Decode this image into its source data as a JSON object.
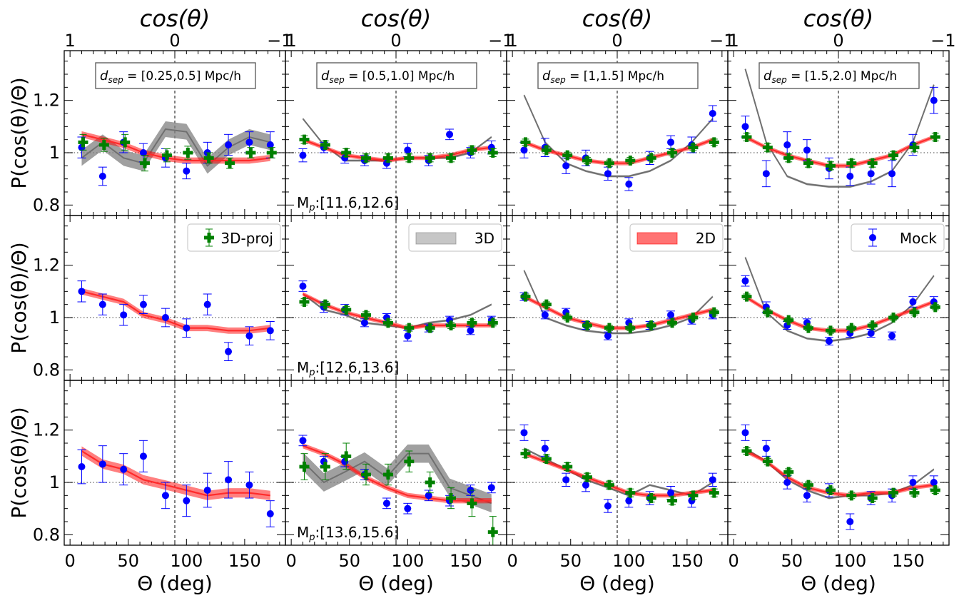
{
  "chart_data": {
    "type": "scatter",
    "layout": "3 rows x 4 columns",
    "xlabel": "Θ (deg)",
    "ylabel": "P(cos(θ)/Θ)",
    "top_xlabel": "cos(θ)",
    "xlim": [
      -5,
      185
    ],
    "ylim": [
      0.76,
      1.39
    ],
    "xticks": [
      0,
      50,
      100,
      150
    ],
    "yticks": [
      0.8,
      1.0,
      1.2
    ],
    "top_ticks": [
      {
        "pos": 0,
        "label": "1"
      },
      {
        "pos": 90,
        "label": "0"
      },
      {
        "pos": 180,
        "label": "−1"
      }
    ],
    "x": [
      10,
      28,
      46,
      63,
      82,
      100,
      118,
      136,
      154,
      172
    ],
    "reference_line": 1.0,
    "vertical_line_theta": 90,
    "legend": [
      {
        "name": "3D-proj",
        "color": "#008000",
        "row": 1,
        "col": 0
      },
      {
        "name": "3D",
        "color": "#808080",
        "row": 1,
        "col": 1
      },
      {
        "name": "2D",
        "color": "#ff0000",
        "row": 1,
        "col": 2
      },
      {
        "name": "Mock",
        "color": "#0000ff",
        "row": 1,
        "col": 3
      }
    ],
    "columns": [
      {
        "dsep_label": "[0.25,0.5] Mpc/h"
      },
      {
        "dsep_label": "[0.5,1.0] Mpc/h"
      },
      {
        "dsep_label": "[1,1.5] Mpc/h"
      },
      {
        "dsep_label": "[1.5,2.0] Mpc/h"
      }
    ],
    "rows": [
      {
        "mass_label": "M",
        "mass_sub": "p",
        "mass_range": ":[11.6,12.6]"
      },
      {
        "mass_label": "M",
        "mass_sub": "p",
        "mass_range": ":[12.6,13.6]"
      },
      {
        "mass_label": "M",
        "mass_sub": "p",
        "mass_range": ":[13.6,15.6]"
      }
    ],
    "panels": [
      {
        "row": 0,
        "col": 0,
        "mock": [
          1.02,
          0.91,
          1.04,
          1.0,
          0.98,
          0.93,
          1.0,
          1.03,
          1.04,
          1.03
        ],
        "mock_err": [
          0.04,
          0.035,
          0.04,
          0.035,
          0.035,
          0.03,
          0.04,
          0.04,
          0.04,
          0.05
        ],
        "proj": [
          1.04,
          1.03,
          1.04,
          0.96,
          0.99,
          1.0,
          0.98,
          0.96,
          1.0,
          1.0
        ],
        "proj_err": [
          0.03,
          0.025,
          0.03,
          0.03,
          0.025,
          0.025,
          0.02,
          0.02,
          0.02,
          0.02
        ],
        "twoD": [
          1.07,
          1.05,
          1.03,
          1.0,
          0.98,
          0.97,
          0.97,
          0.97,
          0.97,
          0.98
        ],
        "twoD_w": 0.012,
        "threeD": [
          0.98,
          1.04,
          0.98,
          0.96,
          1.09,
          1.08,
          0.95,
          1.02,
          1.06,
          1.04
        ],
        "threeD_w": 0.03
      },
      {
        "row": 0,
        "col": 1,
        "mock": [
          0.99,
          1.02,
          0.98,
          0.97,
          0.96,
          1.01,
          0.97,
          1.07,
          1.0,
          1.02
        ],
        "mock_err": [
          0.025,
          0.02,
          0.02,
          0.02,
          0.02,
          0.025,
          0.02,
          0.02,
          0.02,
          0.025
        ],
        "proj": [
          1.05,
          1.03,
          1.0,
          0.98,
          0.98,
          0.98,
          0.98,
          0.98,
          1.01,
          1.0
        ],
        "proj_err": [
          0.015,
          0.015,
          0.015,
          0.015,
          0.015,
          0.015,
          0.015,
          0.015,
          0.015,
          0.015
        ],
        "twoD": [
          1.05,
          1.02,
          0.99,
          0.98,
          0.97,
          0.98,
          0.98,
          0.99,
          1.01,
          1.02
        ],
        "twoD_w": 0.008,
        "threeD": [
          1.13,
          1.03,
          0.97,
          0.97,
          0.97,
          0.98,
          0.98,
          0.98,
          1.0,
          1.06
        ],
        "threeD_w": 0.004
      },
      {
        "row": 0,
        "col": 2,
        "mock": [
          1.01,
          1.02,
          0.95,
          0.98,
          0.92,
          0.88,
          0.98,
          1.04,
          1.03,
          1.15
        ],
        "mock_err": [
          0.03,
          0.035,
          0.03,
          0.03,
          0.025,
          0.025,
          0.025,
          0.025,
          0.03,
          0.03
        ],
        "proj": [
          1.04,
          1.01,
          0.99,
          0.97,
          0.96,
          0.97,
          0.98,
          1.0,
          1.02,
          1.04
        ],
        "proj_err": [
          0.012,
          0.012,
          0.012,
          0.012,
          0.012,
          0.012,
          0.012,
          0.012,
          0.012,
          0.012
        ],
        "twoD": [
          1.04,
          1.01,
          0.99,
          0.97,
          0.96,
          0.96,
          0.98,
          1.0,
          1.02,
          1.05
        ],
        "twoD_w": 0.008,
        "threeD": [
          1.22,
          1.04,
          0.96,
          0.93,
          0.91,
          0.91,
          0.93,
          0.97,
          1.04,
          1.13
        ],
        "threeD_w": 0.004
      },
      {
        "row": 0,
        "col": 3,
        "mock": [
          1.1,
          0.92,
          1.03,
          1.01,
          0.94,
          0.91,
          0.92,
          0.92,
          1.03,
          1.2
        ],
        "mock_err": [
          0.04,
          0.05,
          0.05,
          0.04,
          0.04,
          0.035,
          0.04,
          0.05,
          0.04,
          0.05
        ],
        "proj": [
          1.06,
          1.02,
          0.98,
          0.96,
          0.95,
          0.96,
          0.96,
          0.99,
          1.02,
          1.06
        ],
        "proj_err": [
          0.015,
          0.015,
          0.015,
          0.015,
          0.015,
          0.015,
          0.015,
          0.015,
          0.015,
          0.015
        ],
        "twoD": [
          1.06,
          1.02,
          0.99,
          0.97,
          0.95,
          0.95,
          0.97,
          0.99,
          1.03,
          1.06
        ],
        "twoD_w": 0.008,
        "threeD": [
          1.32,
          1.04,
          0.91,
          0.88,
          0.87,
          0.87,
          0.89,
          0.93,
          1.04,
          1.26
        ],
        "threeD_w": 0.004
      },
      {
        "row": 1,
        "col": 0,
        "mock": [
          1.1,
          1.05,
          1.01,
          1.05,
          1.0,
          0.96,
          1.05,
          0.87,
          0.93,
          0.95
        ],
        "mock_err": [
          0.04,
          0.04,
          0.04,
          0.035,
          0.035,
          0.035,
          0.04,
          0.035,
          0.035,
          0.035
        ],
        "proj": null,
        "proj_err": null,
        "twoD": [
          1.1,
          1.08,
          1.06,
          1.01,
          0.99,
          0.96,
          0.96,
          0.95,
          0.95,
          0.96
        ],
        "twoD_w": 0.012,
        "threeD": null,
        "threeD_w": 0
      },
      {
        "row": 1,
        "col": 1,
        "mock": [
          1.12,
          1.04,
          1.03,
          0.98,
          1.0,
          0.93,
          0.96,
          0.99,
          0.95,
          0.99
        ],
        "mock_err": [
          0.02,
          0.02,
          0.02,
          0.015,
          0.015,
          0.02,
          0.015,
          0.015,
          0.015,
          0.015
        ],
        "proj": [
          1.06,
          1.05,
          1.03,
          1.01,
          0.98,
          0.96,
          0.96,
          0.97,
          0.98,
          0.98
        ],
        "proj_err": [
          0.012,
          0.012,
          0.012,
          0.012,
          0.012,
          0.012,
          0.012,
          0.012,
          0.012,
          0.012
        ],
        "twoD": [
          1.09,
          1.05,
          1.02,
          1.0,
          0.98,
          0.96,
          0.97,
          0.97,
          0.97,
          0.97
        ],
        "twoD_w": 0.008,
        "threeD": [
          1.09,
          1.03,
          1.01,
          0.98,
          0.97,
          0.96,
          0.98,
          0.99,
          1.01,
          1.05
        ],
        "threeD_w": 0.004
      },
      {
        "row": 1,
        "col": 2,
        "mock": [
          1.08,
          1.01,
          1.02,
          0.97,
          0.93,
          0.98,
          0.97,
          1.01,
          0.99,
          1.01
        ],
        "mock_err": [
          0.015,
          0.015,
          0.015,
          0.015,
          0.015,
          0.015,
          0.015,
          0.015,
          0.015,
          0.015
        ],
        "proj": [
          1.08,
          1.05,
          1.0,
          0.97,
          0.96,
          0.96,
          0.97,
          0.98,
          1.0,
          1.02
        ],
        "proj_err": [
          0.01,
          0.01,
          0.01,
          0.01,
          0.01,
          0.01,
          0.01,
          0.01,
          0.01,
          0.01
        ],
        "twoD": [
          1.08,
          1.04,
          1.0,
          0.98,
          0.96,
          0.96,
          0.97,
          0.99,
          1.01,
          1.03
        ],
        "twoD_w": 0.008,
        "threeD": [
          1.18,
          1.0,
          0.97,
          0.95,
          0.94,
          0.94,
          0.95,
          0.97,
          1.0,
          1.08
        ],
        "threeD_w": 0.004
      },
      {
        "row": 1,
        "col": 3,
        "mock": [
          1.14,
          1.04,
          0.97,
          0.98,
          0.91,
          0.94,
          0.94,
          0.93,
          1.06,
          1.06
        ],
        "mock_err": [
          0.02,
          0.02,
          0.015,
          0.015,
          0.015,
          0.015,
          0.015,
          0.015,
          0.02,
          0.02
        ],
        "proj": [
          1.08,
          1.02,
          0.99,
          0.96,
          0.95,
          0.96,
          0.97,
          1.0,
          1.02,
          1.04
        ],
        "proj_err": [
          0.01,
          0.01,
          0.01,
          0.01,
          0.01,
          0.01,
          0.01,
          0.01,
          0.01,
          0.01
        ],
        "twoD": [
          1.08,
          1.03,
          0.99,
          0.96,
          0.95,
          0.95,
          0.97,
          1.0,
          1.03,
          1.06
        ],
        "twoD_w": 0.008,
        "threeD": [
          1.23,
          1.02,
          0.95,
          0.92,
          0.91,
          0.92,
          0.94,
          0.98,
          1.05,
          1.16
        ],
        "threeD_w": 0.004
      },
      {
        "row": 2,
        "col": 0,
        "mock": [
          1.06,
          1.07,
          1.05,
          1.1,
          0.95,
          0.93,
          0.97,
          1.01,
          0.99,
          0.88
        ],
        "mock_err": [
          0.065,
          0.07,
          0.06,
          0.06,
          0.05,
          0.06,
          0.065,
          0.07,
          0.05,
          0.05
        ],
        "proj": null,
        "proj_err": null,
        "twoD": [
          1.12,
          1.07,
          1.05,
          1.01,
          0.99,
          0.97,
          0.95,
          0.96,
          0.96,
          0.95
        ],
        "twoD_w": 0.018,
        "threeD": null,
        "threeD_w": 0
      },
      {
        "row": 2,
        "col": 1,
        "mock": [
          1.16,
          1.08,
          1.08,
          1.03,
          0.92,
          0.9,
          0.95,
          0.93,
          0.97,
          0.98
        ],
        "mock_err": [
          0.02,
          0.02,
          0.02,
          0.02,
          0.02,
          0.02,
          0.02,
          0.02,
          0.02,
          0.02
        ],
        "proj": [
          1.06,
          1.06,
          1.1,
          1.03,
          1.03,
          1.08,
          1.0,
          0.94,
          0.92,
          0.81
        ],
        "proj_err": [
          0.05,
          0.05,
          0.05,
          0.04,
          0.04,
          0.04,
          0.04,
          0.04,
          0.05,
          0.06
        ],
        "twoD": [
          1.14,
          1.11,
          1.07,
          1.02,
          0.98,
          0.95,
          0.94,
          0.93,
          0.93,
          0.93
        ],
        "twoD_w": 0.01,
        "threeD": [
          1.08,
          1.0,
          1.04,
          1.08,
          1.02,
          1.11,
          1.11,
          0.98,
          0.95,
          0.92
        ],
        "threeD_w": 0.035
      },
      {
        "row": 2,
        "col": 2,
        "mock": [
          1.19,
          1.13,
          1.01,
          0.99,
          0.91,
          0.93,
          0.94,
          0.96,
          0.93,
          1.01
        ],
        "mock_err": [
          0.03,
          0.03,
          0.025,
          0.025,
          0.025,
          0.025,
          0.025,
          0.025,
          0.025,
          0.025
        ],
        "proj": [
          1.11,
          1.09,
          1.06,
          1.02,
          0.99,
          0.96,
          0.94,
          0.93,
          0.95,
          0.96
        ],
        "proj_err": [
          0.015,
          0.015,
          0.015,
          0.015,
          0.015,
          0.015,
          0.015,
          0.015,
          0.015,
          0.015
        ],
        "twoD": [
          1.11,
          1.08,
          1.05,
          1.02,
          0.99,
          0.96,
          0.95,
          0.95,
          0.96,
          0.97
        ],
        "twoD_w": 0.008,
        "threeD": [
          1.13,
          1.09,
          1.05,
          1.01,
          0.98,
          0.95,
          0.99,
          0.97,
          0.95,
          1.0
        ],
        "threeD_w": 0.004
      },
      {
        "row": 2,
        "col": 3,
        "mock": [
          1.19,
          1.13,
          1.0,
          0.95,
          0.97,
          0.85,
          0.94,
          0.95,
          1.0,
          1.0
        ],
        "mock_err": [
          0.03,
          0.03,
          0.025,
          0.025,
          0.025,
          0.03,
          0.025,
          0.025,
          0.025,
          0.025
        ],
        "proj": [
          1.12,
          1.08,
          1.04,
          0.99,
          0.97,
          0.95,
          0.94,
          0.96,
          0.96,
          0.97
        ],
        "proj_err": [
          0.012,
          0.012,
          0.012,
          0.012,
          0.012,
          0.012,
          0.012,
          0.012,
          0.012,
          0.012
        ],
        "twoD": [
          1.12,
          1.08,
          1.02,
          0.98,
          0.96,
          0.95,
          0.96,
          0.96,
          0.98,
          0.99
        ],
        "twoD_w": 0.008,
        "threeD": [
          1.13,
          1.08,
          1.01,
          0.97,
          0.94,
          0.95,
          0.95,
          0.96,
          0.99,
          1.05
        ],
        "threeD_w": 0.004
      }
    ]
  },
  "colors": {
    "mock": "#0000ff",
    "proj": "#008000",
    "twoD_line": "#ff2a2a",
    "twoD_band": "#ff0000",
    "threeD_line": "#707070",
    "threeD_band": "#808080",
    "reference": "#808080"
  }
}
